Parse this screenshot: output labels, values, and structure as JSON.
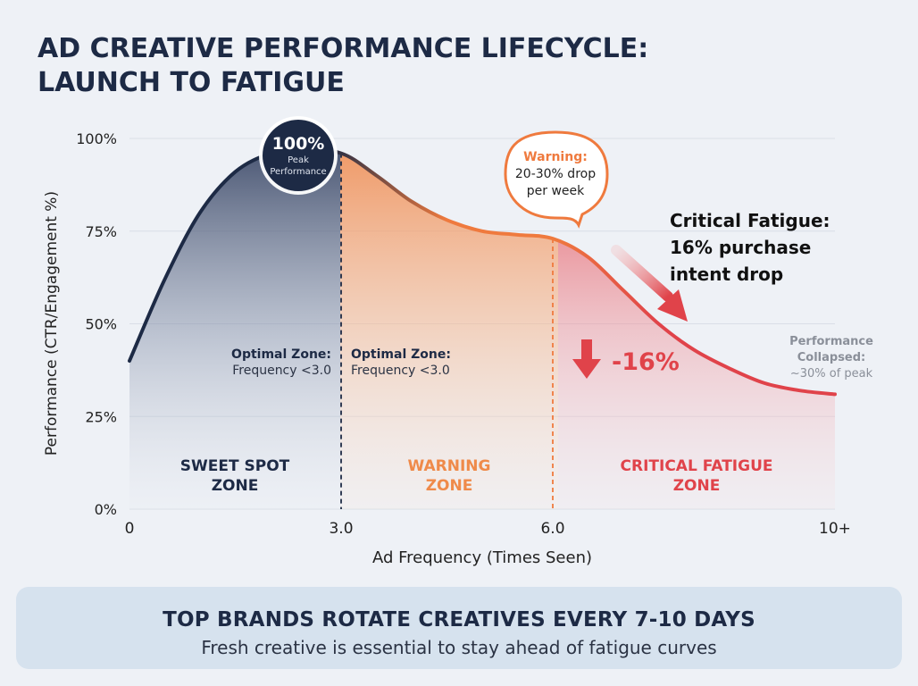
{
  "title": {
    "line1": "AD CREATIVE PERFORMANCE LIFECYCLE:",
    "line2": "LAUNCH TO FATIGUE"
  },
  "chart_data": {
    "type": "area",
    "xlabel": "Ad Frequency (Times Seen)",
    "ylabel": "Performance (CTR/Engagement %)",
    "ylim": [
      0,
      100
    ],
    "xlim": [
      0,
      10
    ],
    "x_ticks": [
      {
        "value": 0,
        "label": "0"
      },
      {
        "value": 3,
        "label": "3.0"
      },
      {
        "value": 6,
        "label": "6.0"
      },
      {
        "value": 10,
        "label": "10+"
      }
    ],
    "y_ticks": [
      {
        "value": 0,
        "label": "0%"
      },
      {
        "value": 25,
        "label": "25%"
      },
      {
        "value": 50,
        "label": "50%"
      },
      {
        "value": 75,
        "label": "75%"
      },
      {
        "value": 100,
        "label": "100%"
      }
    ],
    "grid": true,
    "series": [
      {
        "name": "Performance",
        "x": [
          0,
          0.5,
          1,
          1.5,
          2,
          2.4,
          3,
          3.5,
          4,
          4.5,
          5,
          5.5,
          6,
          6.5,
          7,
          7.5,
          8,
          8.5,
          9,
          9.5,
          10
        ],
        "y": [
          40,
          62,
          80,
          91,
          96,
          97,
          96,
          90,
          83,
          78,
          75,
          74,
          73,
          68,
          59,
          50,
          43,
          38,
          34,
          32,
          31
        ]
      }
    ],
    "zones": [
      {
        "x0": 0,
        "x1": 3,
        "label_line1": "SWEET SPOT",
        "label_line2": "ZONE",
        "color": "#1d2a45"
      },
      {
        "x0": 3,
        "x1": 6,
        "label_line1": "WARNING",
        "label_line2": "ZONE",
        "color": "#ef8a4a"
      },
      {
        "x0": 6,
        "x1": 10,
        "label_line1": "CRITICAL FATIGUE",
        "label_line2": "ZONE",
        "color": "#e0434a"
      }
    ],
    "annotations": {
      "peak": {
        "value": "100%",
        "line1": "Peak",
        "line2": "Performance"
      },
      "warning": {
        "title": "Warning:",
        "line1": "20-30% drop",
        "line2": "per week"
      },
      "critical": {
        "line1": "Critical Fatigue:",
        "line2": "16% purchase",
        "line3": "intent drop"
      },
      "drop": {
        "value": "-16%"
      },
      "optimal_left": {
        "title": "Optimal Zone:",
        "text": "Frequency <3.0"
      },
      "optimal_right": {
        "title": "Optimal Zone:",
        "text": "Frequency <3.0"
      },
      "collapsed": {
        "line1": "Performance",
        "line2": "Collapsed:",
        "line3": "~30% of peak"
      }
    }
  },
  "footer": {
    "title": "TOP BRANDS ROTATE CREATIVES EVERY 7-10 DAYS",
    "subtitle": "Fresh creative is essential to stay ahead of fatigue curves"
  },
  "colors": {
    "navy": "#1d2a45",
    "orange": "#ef8a4a",
    "red": "#e0434a",
    "grid": "#d9dee7"
  }
}
